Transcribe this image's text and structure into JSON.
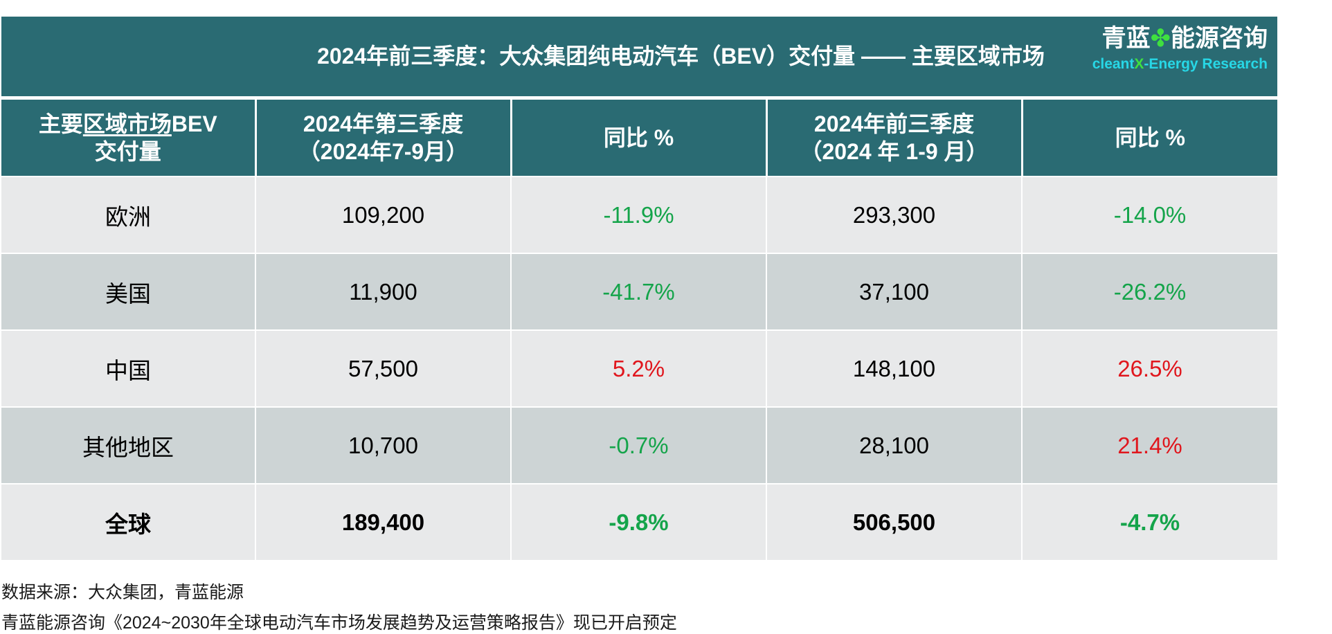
{
  "title": "2024年前三季度：大众集团纯电动汽车（BEV）交付量 —— 主要区域市场",
  "logo": {
    "cn_part1": "青蓝",
    "cn_part2": "能源咨询",
    "icon": "clover-icon",
    "en_part1": "cleant",
    "en_x": "X",
    "en_part2": "-Energy Research"
  },
  "table": {
    "headers": {
      "region_part1": "主要",
      "region_part2": "区域市场",
      "region_part3": "BEV",
      "region_line2": "交付量",
      "q3_line1": "2024年第三季度",
      "q3_line2": "（2024年7-9月）",
      "yoy1": "同比 %",
      "ytd_line1": "2024年前三季度",
      "ytd_line2": "（2024 年 1-9 月）",
      "yoy2": "同比 %"
    },
    "rows": [
      {
        "region": "欧洲",
        "q3": "109,200",
        "q3_yoy": "-11.9%",
        "ytd": "293,300",
        "ytd_yoy": "-14.0%"
      },
      {
        "region": "美国",
        "q3": "11,900",
        "q3_yoy": "-41.7%",
        "ytd": "37,100",
        "ytd_yoy": "-26.2%"
      },
      {
        "region": "中国",
        "q3": "57,500",
        "q3_yoy": "5.2%",
        "ytd": "148,100",
        "ytd_yoy": "26.5%"
      },
      {
        "region": "其他地区",
        "q3": "10,700",
        "q3_yoy": "-0.7%",
        "ytd": "28,100",
        "ytd_yoy": "21.4%"
      },
      {
        "region": "全球",
        "q3": "189,400",
        "q3_yoy": "-9.8%",
        "ytd": "506,500",
        "ytd_yoy": "-4.7%"
      }
    ]
  },
  "notes": {
    "source": "数据来源：大众集团，青蓝能源",
    "report": "青蓝能源咨询《2024~2030年全球电动汽车市场发展趋势及运营策略报告》现已开启预定"
  },
  "colors": {
    "header_bg": "#2a6b73",
    "row_light": "#e8e9ea",
    "row_dark": "#cdd4d5",
    "negative": "#14a44a",
    "positive": "#e0161d",
    "logo_en": "#27d7e6",
    "logo_clover": "#3fe03f"
  }
}
